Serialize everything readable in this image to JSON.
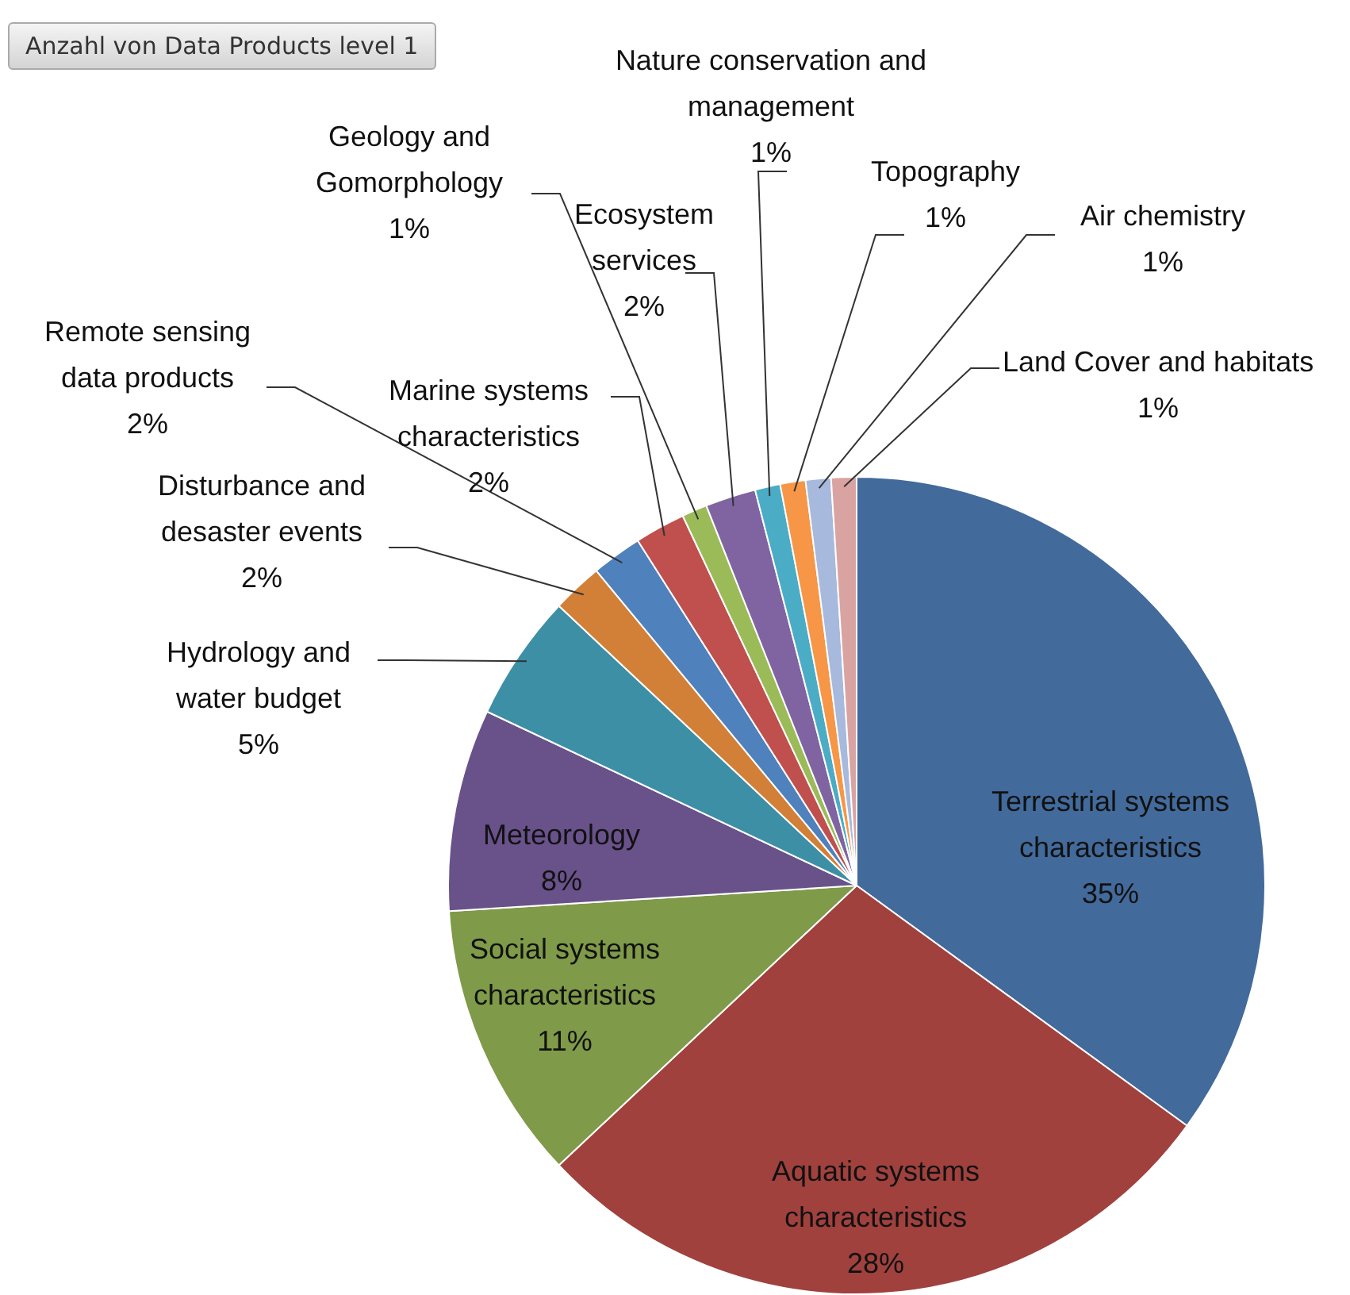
{
  "chart_data": {
    "type": "pie",
    "title": "Anzahl von Data Products level 1",
    "categories": [
      "Terrestrial systems characteristics",
      "Aquatic systems characteristics",
      "Social systems characteristics",
      "Meteorology",
      "Hydrology and water budget",
      "Disturbance and desaster events",
      "Remote sensing data products",
      "Marine systems characteristics",
      "Geology and Gomorphology",
      "Ecosystem services",
      "Nature conservation and management",
      "Topography",
      "Air chemistry",
      "Land Cover and habitats"
    ],
    "values": [
      35,
      28,
      11,
      8,
      5,
      2,
      2,
      2,
      1,
      2,
      1,
      1,
      1,
      1
    ],
    "value_labels": [
      "35%",
      "28%",
      "11%",
      "8%",
      "5%",
      "2%",
      "2%",
      "2%",
      "1%",
      "2%",
      "1%",
      "1%",
      "1%",
      "1%"
    ],
    "colors": [
      "#426a9b",
      "#a0413d",
      "#7f9a48",
      "#69518a",
      "#3d8fa5",
      "#d27f37",
      "#4f81bd",
      "#c0504d",
      "#9bbb59",
      "#8064a2",
      "#4bacc6",
      "#f79646",
      "#a7b9dc",
      "#d9a3a2"
    ],
    "legend": false
  }
}
